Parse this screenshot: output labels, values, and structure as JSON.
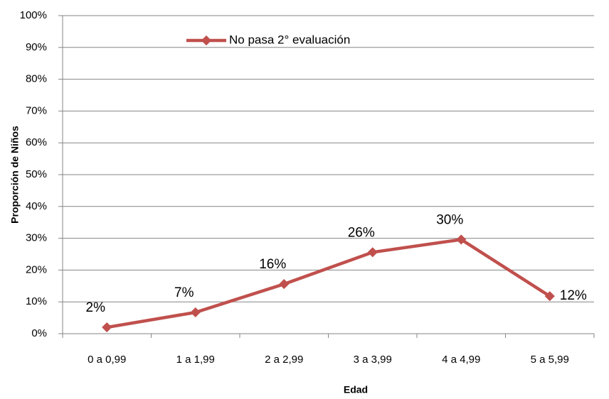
{
  "chart_data": {
    "type": "line",
    "x_label": "Edad",
    "y_label": "Proporción de Niños",
    "categories": [
      "0 a 0,99",
      "1 a 1,99",
      "2 a 2,99",
      "3 a 3,99",
      "4 a 4,99",
      "5 a 5,99"
    ],
    "series": [
      {
        "name": "No pasa 2° evaluación",
        "color": "#c0504d",
        "values": [
          2,
          6.7,
          15.6,
          25.6,
          29.6,
          11.8
        ],
        "value_labels": [
          "2%",
          "7%",
          "16%",
          "26%",
          "30%",
          "12%"
        ]
      }
    ],
    "ylim": [
      0,
      100
    ],
    "yticks": [
      {
        "value": 0,
        "label": "0%"
      },
      {
        "value": 10,
        "label": "10%"
      },
      {
        "value": 20,
        "label": "20%"
      },
      {
        "value": 30,
        "label": "30%"
      },
      {
        "value": 40,
        "label": "40%"
      },
      {
        "value": 50,
        "label": "50%"
      },
      {
        "value": 60,
        "label": "60%"
      },
      {
        "value": 70,
        "label": "70%"
      },
      {
        "value": 80,
        "label": "80%"
      },
      {
        "value": 90,
        "label": "90%"
      },
      {
        "value": 100,
        "label": "100%"
      }
    ],
    "grid": true,
    "legend": "top"
  }
}
